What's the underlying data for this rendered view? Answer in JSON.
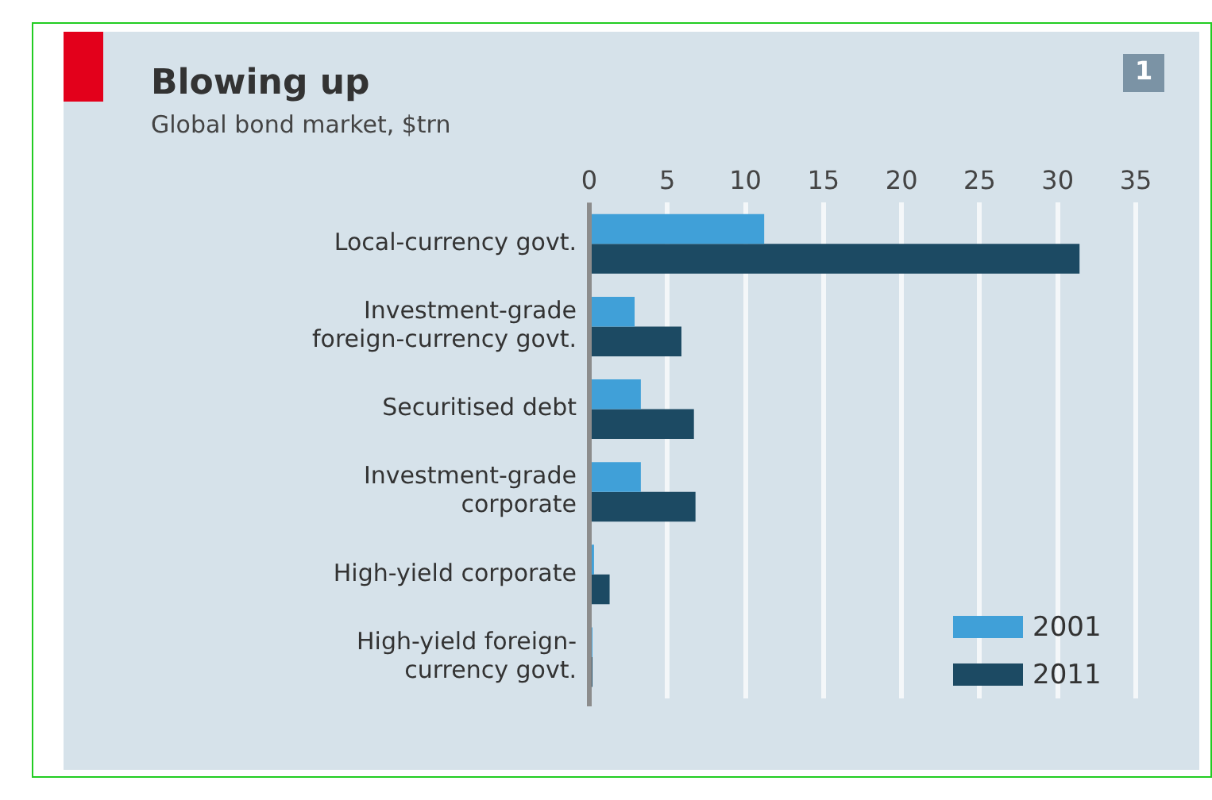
{
  "chart_data": {
    "type": "bar",
    "orientation": "horizontal",
    "title": "Blowing up",
    "subtitle": "Global bond market, $trn",
    "annotations": [
      "1"
    ],
    "categories": [
      "Local-currency govt.",
      "Investment-grade foreign-currency govt.",
      "Securitised debt",
      "Investment-grade corporate",
      "High-yield corporate",
      "High-yield foreign-currency govt."
    ],
    "series": [
      {
        "name": "2001",
        "color": "#40a0d8",
        "values": [
          11.2,
          2.9,
          3.3,
          3.3,
          0.3,
          0.2
        ]
      },
      {
        "name": "2011",
        "color": "#1c4a63",
        "values": [
          31.4,
          5.9,
          6.7,
          6.8,
          1.3,
          0.2
        ]
      }
    ],
    "xlim": [
      0,
      35
    ],
    "xticks": [
      0,
      5,
      10,
      15,
      20,
      25,
      30,
      35
    ],
    "grid": "x",
    "legend": "bottom right"
  }
}
